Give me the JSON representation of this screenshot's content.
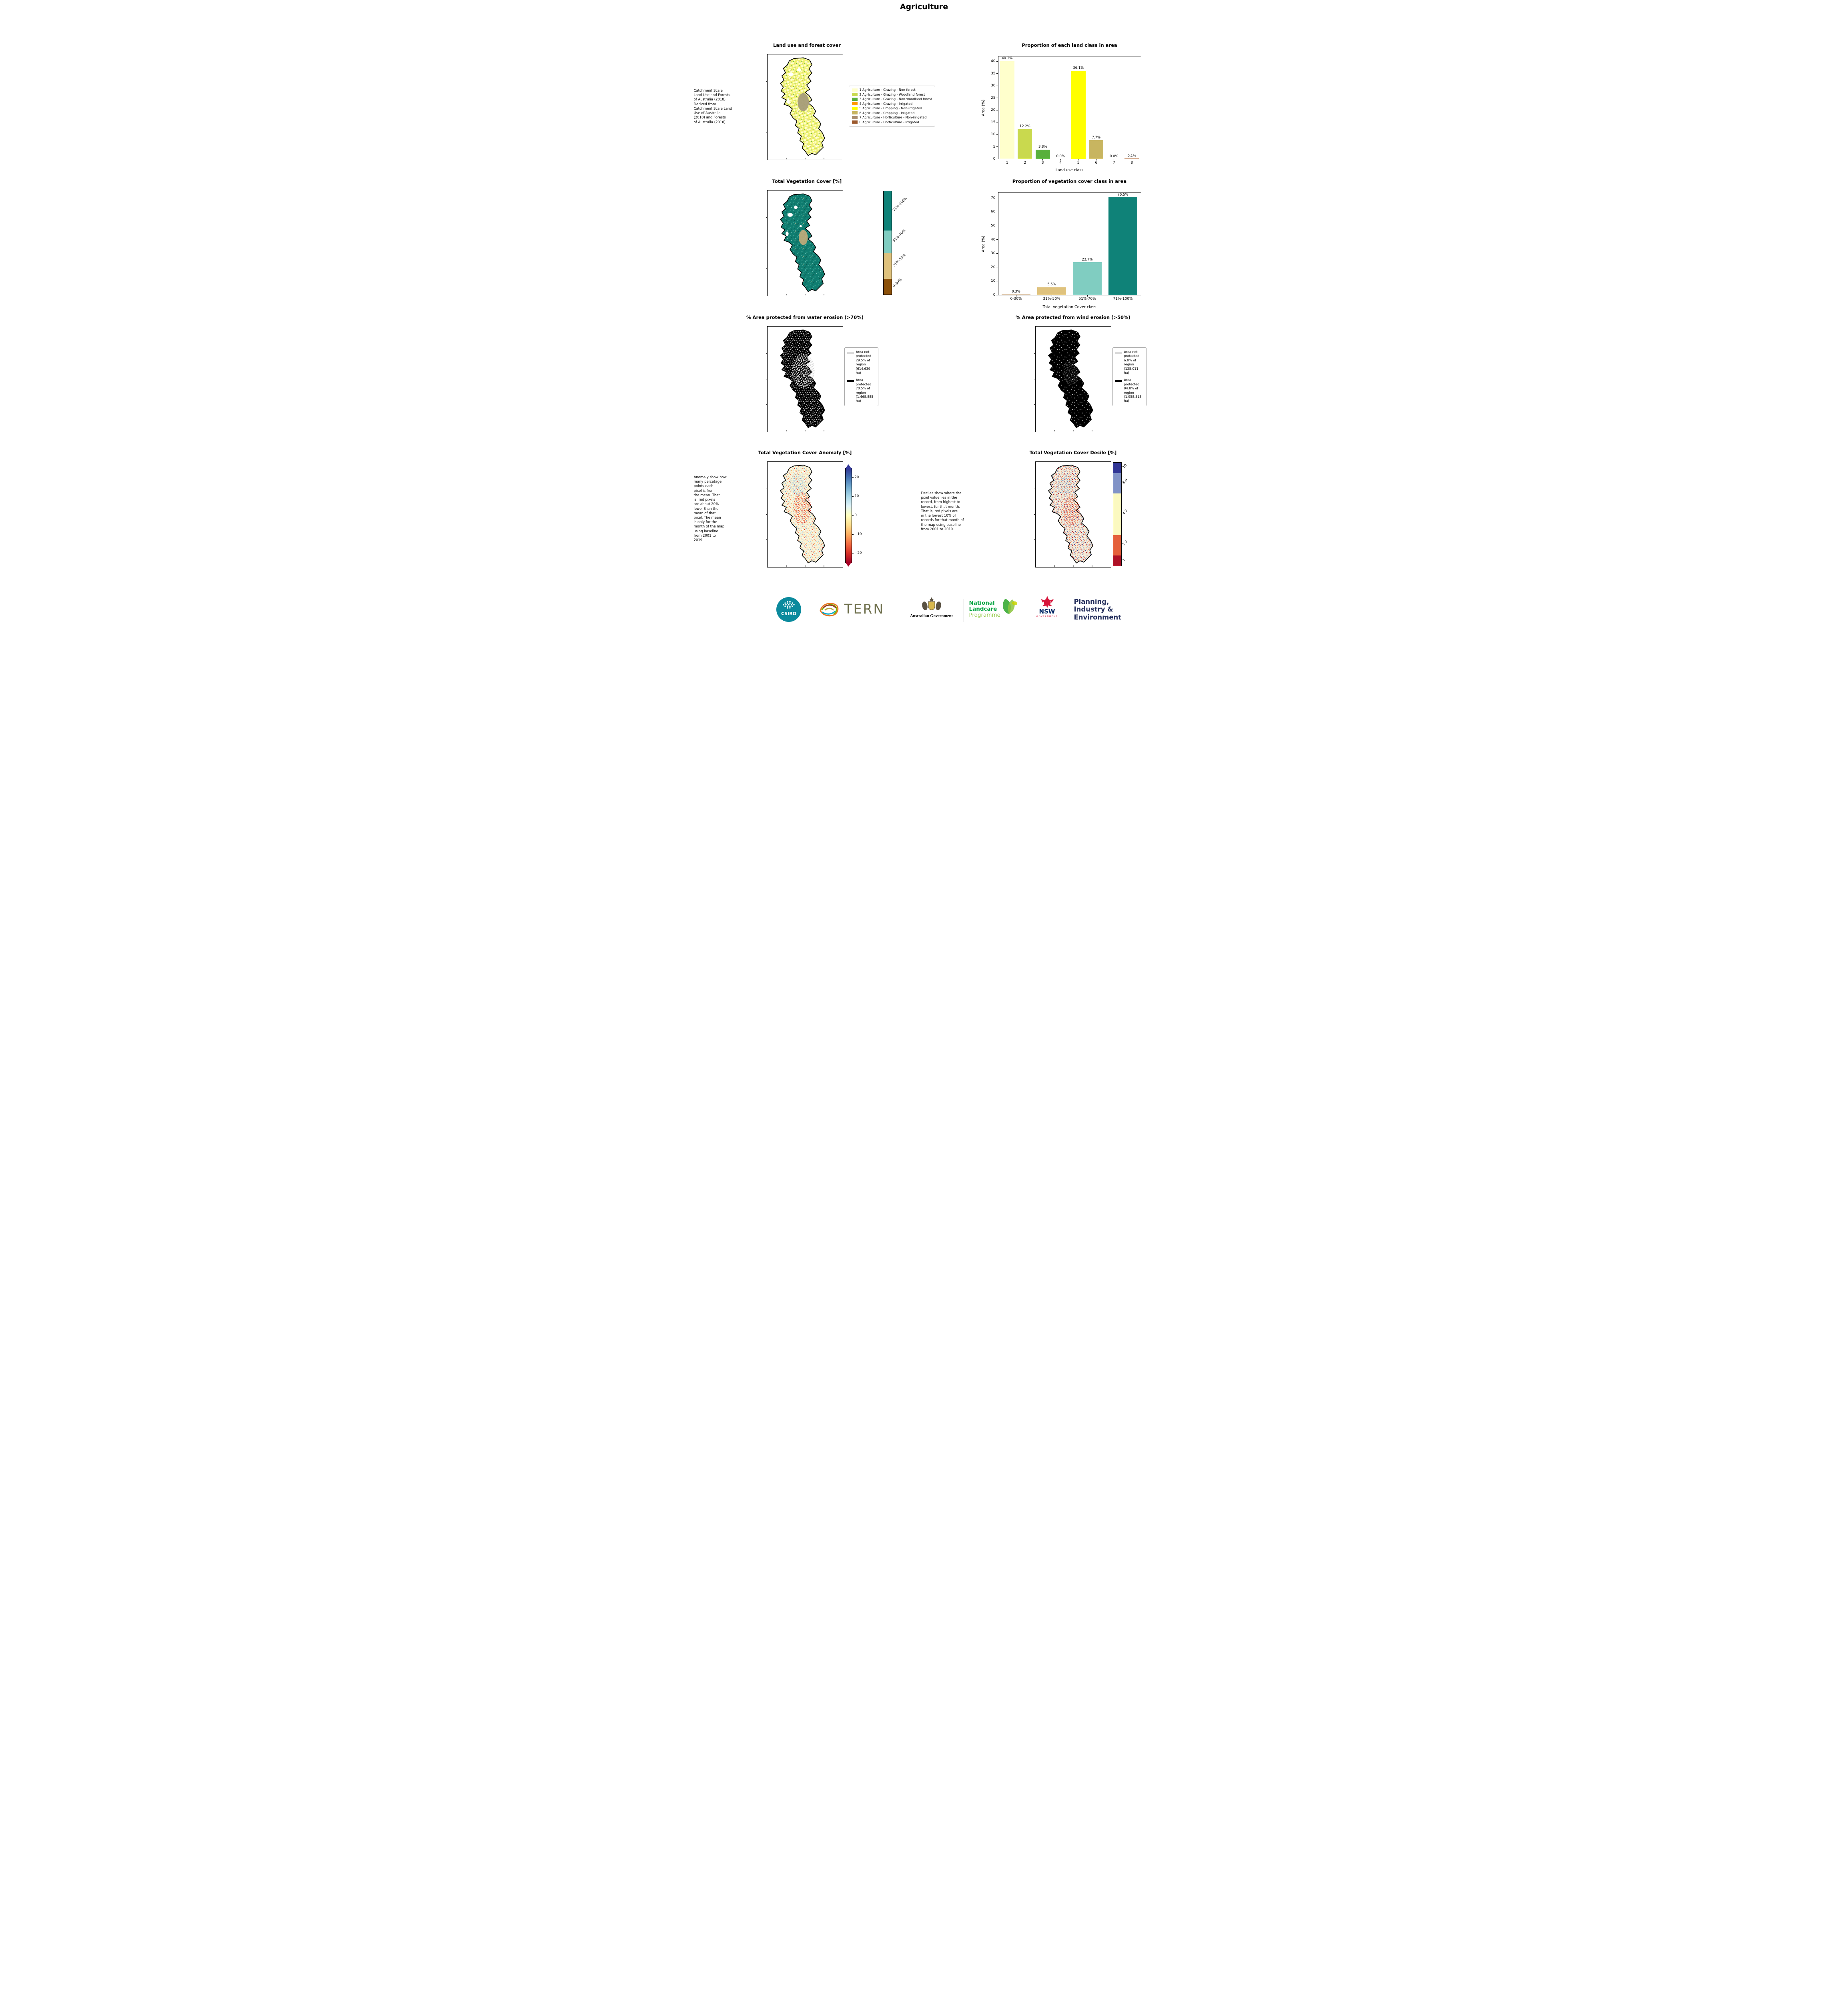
{
  "page": {
    "title": "Agriculture"
  },
  "panels": {
    "landuse": {
      "title": "Land use and forest cover",
      "side_text": " Catchment Scale\nLand Use and Forests\nof Australia (2018)\nDerived from\nCatchment Scale Land\nUse of Australia\n(2018) and Forests\nof Australia (2018)",
      "legend": [
        {
          "label": "1 Agriculture - Grazing - Non forest",
          "color": "#ffffcc"
        },
        {
          "label": "2 Agriculture - Grazing - Woodland forest",
          "color": "#c9d94e"
        },
        {
          "label": "3 Agriculture - Grazing - Non-woodland forest",
          "color": "#58b03c"
        },
        {
          "label": "4 Agriculture - Grazing - Irrigated",
          "color": "#ff9900"
        },
        {
          "label": "5 Agriculture - Cropping - Non-irrigated",
          "color": "#ffff00"
        },
        {
          "label": "6 Agriculture - Cropping - Irrigated",
          "color": "#c8b560"
        },
        {
          "label": "7 Agriculture - Horticulture - Non-irrigated",
          "color": "#a98d6f"
        },
        {
          "label": "8 Agriculture - Horticulture - Irrigated",
          "color": "#9c5a2e"
        }
      ]
    },
    "vegcover": {
      "title": "Total Vegetation Cover [%]"
    },
    "water": {
      "title": "% Area protected from water erosion (>70%)",
      "legend": [
        {
          "color": "#d9d9d9",
          "text": "Area not\nprotected\n29.5% of\nregion\n(614,639\nha)"
        },
        {
          "color": "#000000",
          "text": "Area\nprotected\n70.5% of\nregion\n(1,468,885\nha)"
        }
      ]
    },
    "wind": {
      "title": "% Area protected from wind erosion (>50%)",
      "legend": [
        {
          "color": "#d9d9d9",
          "text": "Area not\nprotected\n6.0% of\nregion\n(125,011\nha)"
        },
        {
          "color": "#000000",
          "text": "Area\nprotected\n94.0% of\nregion\n(1,958,513\nha)"
        }
      ]
    },
    "anomaly": {
      "title": "Total Vegetation Cover Anomaly [%]",
      "side_text": "Anomaly show how\nmany percetage\npoints each\npixel is from\nthe mean. That\nis, red pixels\nare about 20%\nlower than the\nmean of that\npixel. The mean\nis only for the\nmonth of the map\nusing baseline\nfrom 2001 to\n2019."
    },
    "decile": {
      "title": "Total Vegetation Cover Decile [%]",
      "note": "Deciles show where the\npixel value lies in the\nrecord, from highest to\nlowest, for that month.\nThat is, red pixels are\nin the lowest 10% of\nrecords for that month of\nthe map using baseline\nfrom 2001 to 2019."
    }
  },
  "chart_data": [
    {
      "type": "bar",
      "title": "Proportion of each land class in area",
      "xlabel": "Land use class",
      "ylabel": "Area (%)",
      "categories": [
        "1",
        "2",
        "3",
        "4",
        "5",
        "6",
        "7",
        "8"
      ],
      "values": [
        40.1,
        12.2,
        3.8,
        0.0,
        36.1,
        7.7,
        0.0,
        0.1
      ],
      "labels": [
        "40.1%",
        "12.2%",
        "3.8%",
        "0.0%",
        "36.1%",
        "7.7%",
        "0.0%",
        "0.1%"
      ],
      "colors": [
        "#ffffcc",
        "#c9d94e",
        "#58b03c",
        "#ff9900",
        "#ffff00",
        "#c8b560",
        "#a98d6f",
        "#9c5a2e"
      ],
      "ylim": [
        0,
        42
      ],
      "yticks": [
        0,
        5,
        10,
        15,
        20,
        25,
        30,
        35,
        40
      ],
      "grid": false,
      "legend_position": "none"
    },
    {
      "type": "bar",
      "title": "Proportion of vegetation cover class in area",
      "xlabel": "Total Vegetation Cover class",
      "ylabel": "Area (%)",
      "categories": [
        "0-30%",
        "31%-50%",
        "51%-70%",
        "71%-100%"
      ],
      "values": [
        0.3,
        5.5,
        23.7,
        70.5
      ],
      "labels": [
        "0.3%",
        "5.5%",
        "23.7%",
        "70.5%"
      ],
      "colors": [
        "#8c510a",
        "#dfc27d",
        "#80cdc1",
        "#0f8278"
      ],
      "ylim": [
        0,
        74
      ],
      "yticks": [
        0,
        10,
        20,
        30,
        40,
        50,
        60,
        70
      ],
      "grid": false,
      "legend_position": "none"
    }
  ],
  "colorbars": {
    "veg_cover": {
      "segments_bottom_to_top": [
        {
          "label": "0-30%",
          "color": "#8c510a",
          "extent_pct": 15
        },
        {
          "label": "31%-50%",
          "color": "#dfc27d",
          "extent_pct": 25
        },
        {
          "label": "51%-70%",
          "color": "#80cdc1",
          "extent_pct": 22
        },
        {
          "label": "71%-100%",
          "color": "#0f8278",
          "extent_pct": 38
        }
      ]
    },
    "anomaly": {
      "range": [
        -25,
        25
      ],
      "ticks": [
        {
          "v": 20,
          "label": "20"
        },
        {
          "v": 10,
          "label": "10"
        },
        {
          "v": 0,
          "label": "0"
        },
        {
          "v": -10,
          "label": "−10"
        },
        {
          "v": -20,
          "label": "−20"
        }
      ],
      "gradient_top_to_bottom": [
        "#313695",
        "#4575b4",
        "#74add1",
        "#abd9e9",
        "#e0f3f8",
        "#ffffbf",
        "#fee090",
        "#fdae61",
        "#f46d43",
        "#d73027",
        "#a50026"
      ]
    },
    "decile": {
      "segments_bottom_to_top": [
        {
          "label": "1",
          "color": "#ad1126",
          "extent_pct": 10
        },
        {
          "label": "2-3",
          "color": "#e4603b",
          "extent_pct": 20
        },
        {
          "label": "4-7",
          "color": "#fbf9c0",
          "extent_pct": 40
        },
        {
          "label": "8-9",
          "color": "#8193c7",
          "extent_pct": 20
        },
        {
          "label": "10",
          "color": "#313695",
          "extent_pct": 10
        }
      ]
    }
  },
  "footer": {
    "csiro": {
      "label": "CSIRO",
      "color": "#0b8a9d"
    },
    "tern": {
      "label": "TERN",
      "color": "#6e6f4c"
    },
    "ausgov": {
      "label": "Australian Government"
    },
    "landcare": {
      "line1": "National",
      "line2": "Landcare",
      "line3": "Programme",
      "green": "#00a33e",
      "light_green": "#94c947"
    },
    "nsw": {
      "label": "NSW",
      "sub": "GOVERNMENT",
      "navy": "#002664",
      "red": "#d7153a"
    },
    "planning": {
      "line1": "Planning,",
      "line2": "Industry &",
      "line3": "Environment",
      "navy": "#27315e"
    }
  }
}
